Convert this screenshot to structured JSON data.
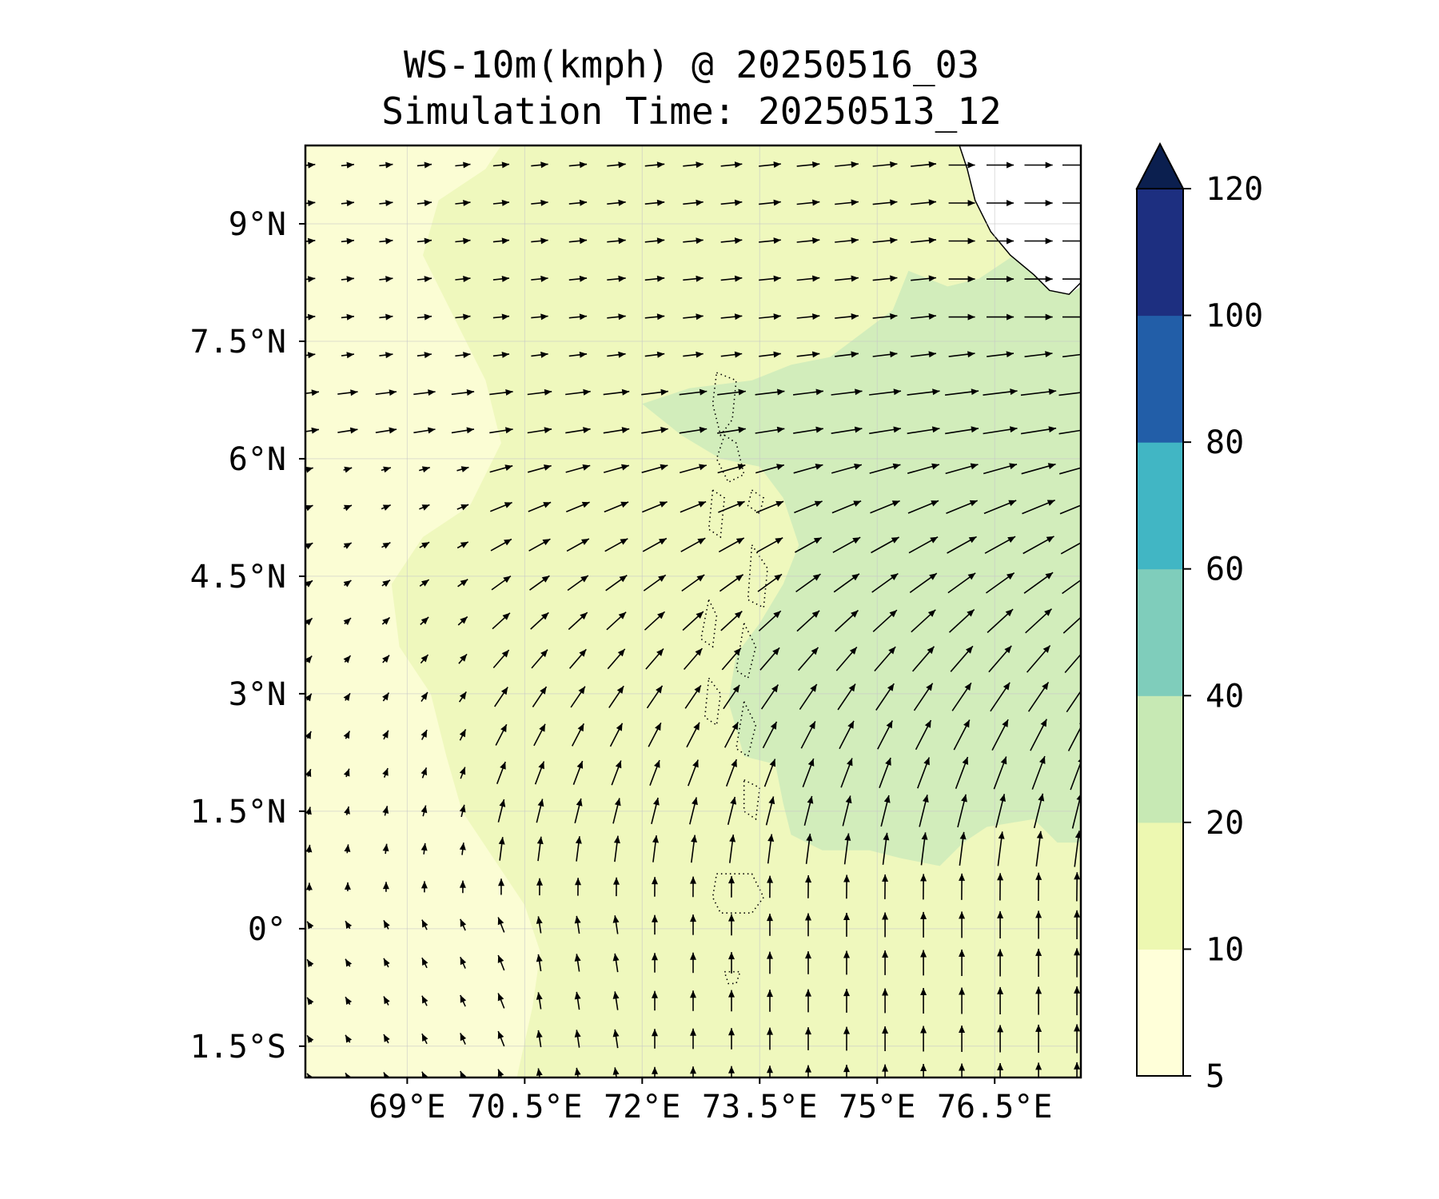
{
  "title_line1": "WS-10m(kmph) @ 20250516_03",
  "title_line2": "Simulation Time: 20250513_12",
  "chart_data": {
    "type": "heatmap",
    "variable": "WS-10m(kmph)",
    "region": {
      "lon_range": [
        67.7,
        77.6
      ],
      "lat_range": [
        -1.9,
        10.0
      ]
    },
    "x_ticks": [
      {
        "value": 69,
        "label": "69°E"
      },
      {
        "value": 70.5,
        "label": "70.5°E"
      },
      {
        "value": 72,
        "label": "72°E"
      },
      {
        "value": 73.5,
        "label": "73.5°E"
      },
      {
        "value": 75,
        "label": "75°E"
      },
      {
        "value": 76.5,
        "label": "76.5°E"
      }
    ],
    "y_ticks": [
      {
        "value": 9,
        "label": "9°N"
      },
      {
        "value": 7.5,
        "label": "7.5°N"
      },
      {
        "value": 6,
        "label": "6°N"
      },
      {
        "value": 4.5,
        "label": "4.5°N"
      },
      {
        "value": 3,
        "label": "3°N"
      },
      {
        "value": 1.5,
        "label": "1.5°N"
      },
      {
        "value": 0,
        "label": "0°"
      },
      {
        "value": -1.5,
        "label": "1.5°S"
      }
    ],
    "grid": true,
    "colorbar": {
      "boundaries": [
        5,
        10,
        20,
        40,
        60,
        80,
        100,
        120
      ],
      "tick_labels": [
        "5",
        "10",
        "20",
        "40",
        "60",
        "80",
        "100",
        "120"
      ],
      "colors": [
        "#ffffd9",
        "#edf8b1",
        "#c7e9b4",
        "#7fcdbb",
        "#41b6c4",
        "#225ea8",
        "#1d2f80"
      ],
      "extend_color": "#0b1f4f",
      "extend": "max"
    },
    "field_colors": {
      "light": "#fbfdd4",
      "mid": "#eff8bd",
      "band20": "#d2edbb",
      "land": "#ffffff"
    },
    "wind_field_description": "Southerly winds south of the equator veering to south-westerly and westerly north of about 4°N; stronger flow east of 73.5°E."
  }
}
